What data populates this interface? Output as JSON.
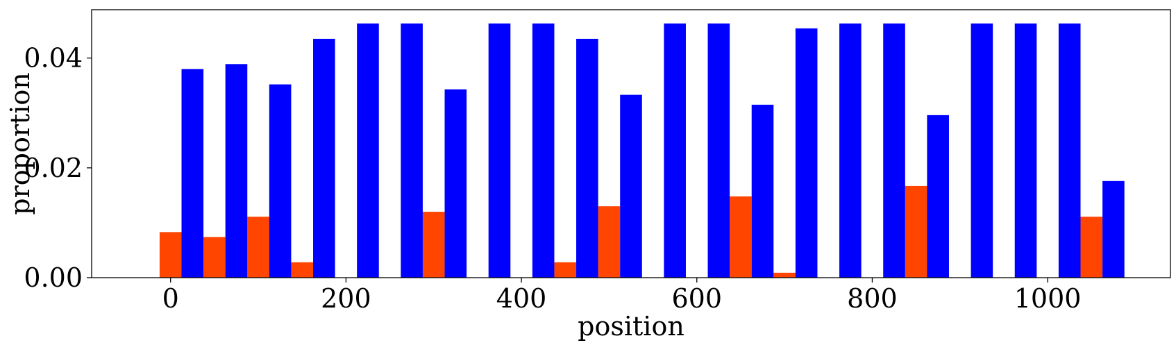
{
  "chart_data": {
    "type": "bar",
    "xlabel": "position",
    "ylabel": "proportion",
    "xlim": [
      -90,
      1140
    ],
    "ylim": [
      0,
      0.0488
    ],
    "x_ticks": [
      0,
      200,
      400,
      600,
      800,
      1000
    ],
    "x_tick_labels": [
      "0",
      "200",
      "400",
      "600",
      "800",
      "1000"
    ],
    "y_ticks": [
      0,
      0.02,
      0.04
    ],
    "y_tick_labels": [
      "0.00",
      "0.02",
      "0.04"
    ],
    "grid": false,
    "legend": "none",
    "positions": [
      0,
      50,
      100,
      150,
      200,
      250,
      300,
      350,
      400,
      450,
      500,
      550,
      600,
      650,
      700,
      750,
      800,
      850,
      900,
      950,
      1000,
      1050
    ],
    "bar_width": 25,
    "series": [
      {
        "color": "#ff4500",
        "offset": 0,
        "values": [
          0.0083,
          0.0074,
          0.0111,
          0.0028,
          0,
          0,
          0.012,
          0,
          0,
          0.0028,
          0.013,
          0,
          0,
          0.0148,
          0.0009,
          0,
          0,
          0.0167,
          0,
          0,
          0,
          0.0111
        ]
      },
      {
        "color": "#0000ff",
        "offset": 25,
        "values": [
          0.038,
          0.0389,
          0.0352,
          0.0435,
          0.0463,
          0.0463,
          0.0343,
          0.0463,
          0.0463,
          0.0435,
          0.0333,
          0.0463,
          0.0463,
          0.0315,
          0.0454,
          0.0463,
          0.0463,
          0.0296,
          0.0463,
          0.0463,
          0.0463,
          0.0176
        ]
      }
    ]
  }
}
